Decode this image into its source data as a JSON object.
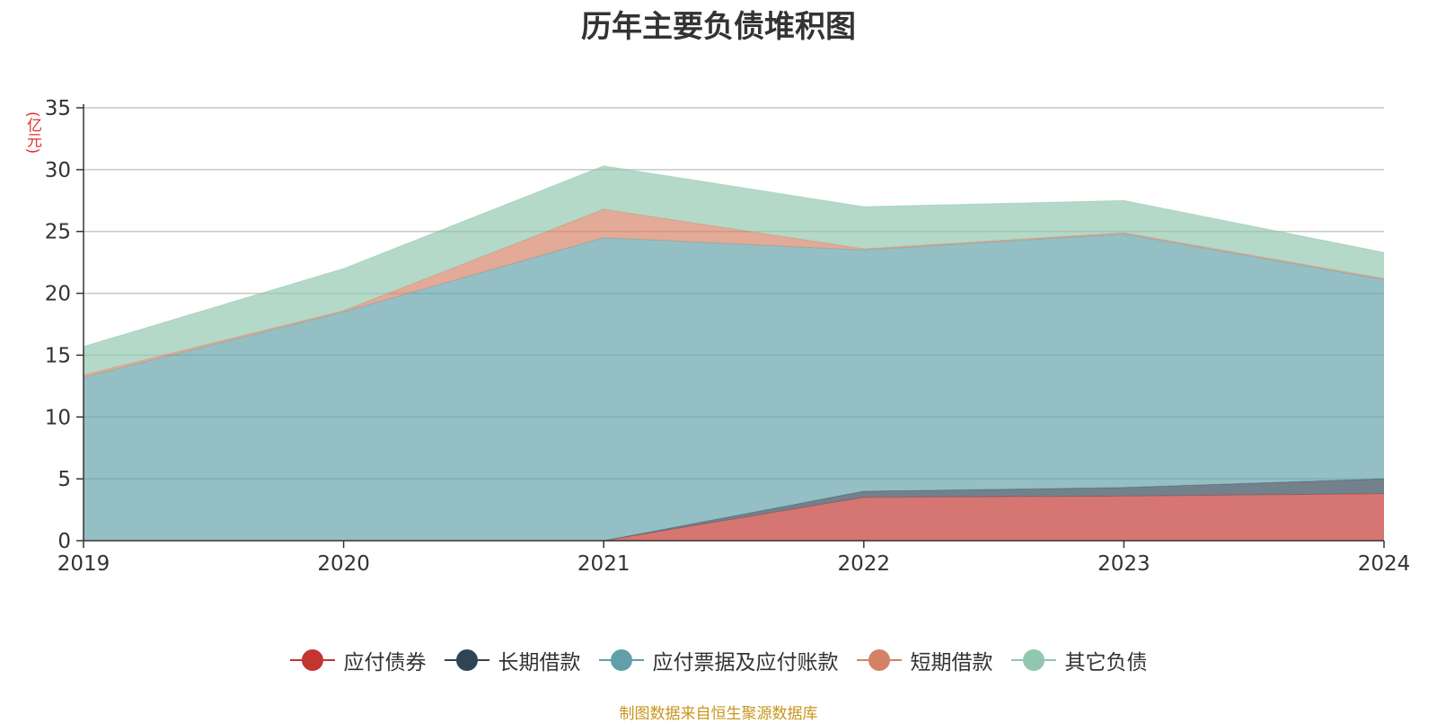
{
  "chart_data": {
    "type": "area",
    "stacked": true,
    "title": "历年主要负债堆积图",
    "ylabel": "(亿元)",
    "xlabel": "",
    "categories": [
      "2019",
      "2020",
      "2021",
      "2022",
      "2023",
      "2024"
    ],
    "ylim": [
      0,
      35
    ],
    "yticks": [
      0,
      5,
      10,
      15,
      20,
      25,
      30,
      35
    ],
    "grid": true,
    "legend_position": "bottom",
    "series": [
      {
        "name": "应付债券",
        "color": "#c23531",
        "values": [
          0,
          0,
          0,
          3.5,
          3.6,
          3.8
        ]
      },
      {
        "name": "长期借款",
        "color": "#2f4554",
        "values": [
          0,
          0,
          0,
          0.5,
          0.7,
          1.2
        ]
      },
      {
        "name": "应付票据及应付账款",
        "color": "#61a0a8",
        "values": [
          13.2,
          18.5,
          24.5,
          19.5,
          20.5,
          16.1
        ]
      },
      {
        "name": "短期借款",
        "color": "#d48265",
        "values": [
          0.2,
          0.1,
          2.3,
          0.1,
          0.1,
          0.1
        ]
      },
      {
        "name": "其它负债",
        "color": "#91c7ae",
        "values": [
          2.3,
          3.4,
          3.5,
          3.4,
          2.6,
          2.1
        ]
      }
    ]
  },
  "footer": {
    "source": "制图数据来自恒生聚源数据库"
  }
}
